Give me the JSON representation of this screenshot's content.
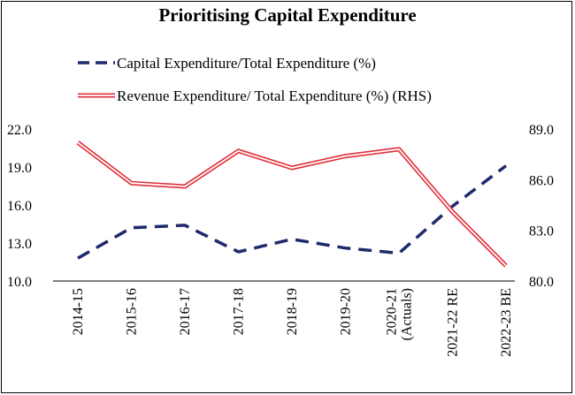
{
  "chart_data": {
    "type": "line",
    "title": "Prioritising Capital Expenditure",
    "categories": [
      [
        "2014-15"
      ],
      [
        "2015-16"
      ],
      [
        "2016-17"
      ],
      [
        "2017-18"
      ],
      [
        "2018-19"
      ],
      [
        "2019-20"
      ],
      [
        "2020-21",
        "(Actuals)"
      ],
      [
        "2021-22 RE"
      ],
      [
        "2022-23 BE"
      ]
    ],
    "y_left": {
      "ylim": [
        10.0,
        22.0
      ],
      "ticks": [
        "22.0",
        "19.0",
        "16.0",
        "13.0",
        "10.0"
      ]
    },
    "y_right": {
      "ylim": [
        80.0,
        89.0
      ],
      "ticks": [
        "89.0",
        "86.0",
        "83.0",
        "80.0"
      ]
    },
    "series": [
      {
        "name": "Capital Expenditure/Total Expenditure (%)",
        "axis": "left",
        "style": "dashed",
        "color": "#1f2a6b",
        "values": [
          11.8,
          14.2,
          14.4,
          12.3,
          13.3,
          12.6,
          12.2,
          15.9,
          19.1
        ]
      },
      {
        "name": "Revenue Expenditure/ Total Expenditure (%) (RHS)",
        "axis": "right",
        "style": "double",
        "color": "#e0303a",
        "values": [
          88.2,
          85.8,
          85.6,
          87.7,
          86.7,
          87.4,
          87.8,
          84.1,
          80.9
        ]
      }
    ],
    "grid": false,
    "legend_position": "top-center"
  }
}
